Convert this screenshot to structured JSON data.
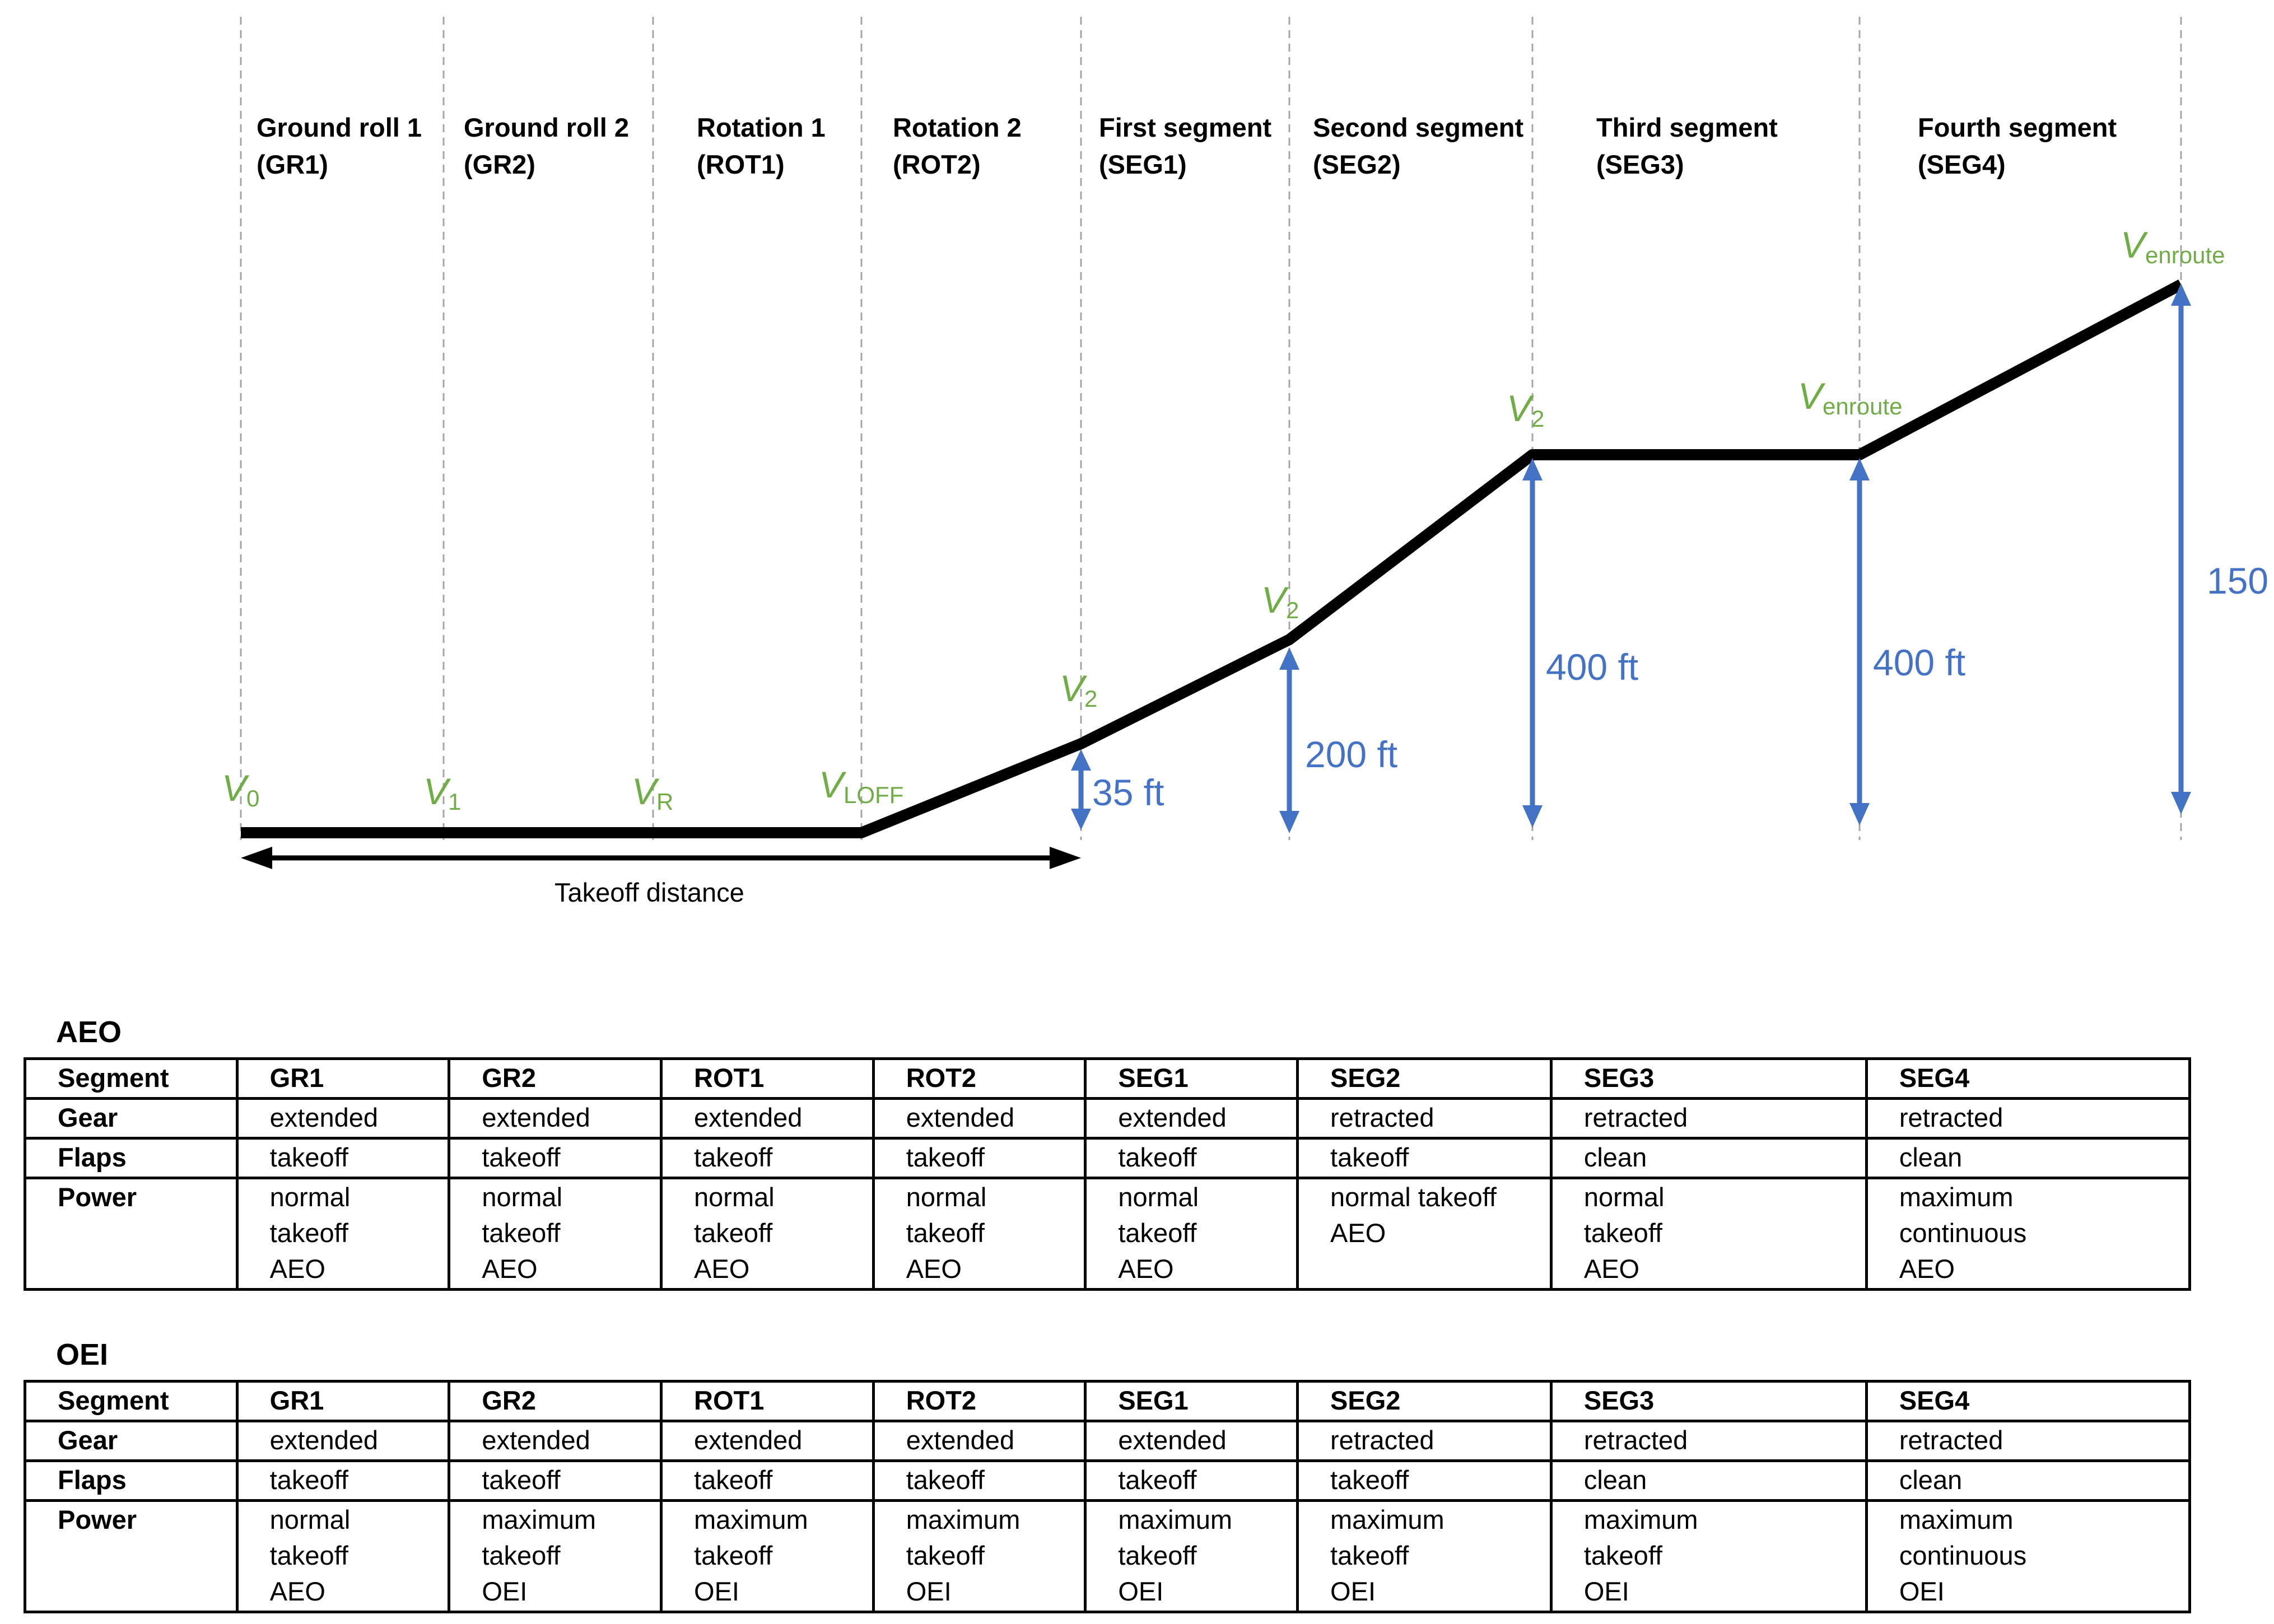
{
  "phases": [
    {
      "name": "Ground roll 1",
      "abbr": "(GR1)"
    },
    {
      "name": "Ground roll 2",
      "abbr": "(GR2)"
    },
    {
      "name": "Rotation 1",
      "abbr": "(ROT1)"
    },
    {
      "name": "Rotation 2",
      "abbr": "(ROT2)"
    },
    {
      "name": "First segment",
      "abbr": "(SEG1)"
    },
    {
      "name": "Second segment",
      "abbr": "(SEG2)"
    },
    {
      "name": "Third segment",
      "abbr": "(SEG3)"
    },
    {
      "name": "Fourth segment",
      "abbr": "(SEG4)"
    }
  ],
  "speeds": [
    {
      "main": "V",
      "sub": "0"
    },
    {
      "main": "V",
      "sub": "1"
    },
    {
      "main": "V",
      "sub": "R"
    },
    {
      "main": "V",
      "sub": "LOFF"
    },
    {
      "main": "V",
      "sub": "2"
    },
    {
      "main": "V",
      "sub": "2"
    },
    {
      "main": "V",
      "sub": "2"
    },
    {
      "main": "V",
      "sub": "enroute"
    },
    {
      "main": "V",
      "sub": "enroute"
    }
  ],
  "altitudes": [
    "35 ft",
    "200 ft",
    "400 ft",
    "400 ft",
    "150"
  ],
  "distance_label": "Takeoff distance",
  "colors": {
    "speed": "#70ad47",
    "altitude": "#4472c4",
    "path": "#000000",
    "gridline": "#a6a6a6"
  },
  "tables": [
    {
      "title": "AEO",
      "header": [
        "Segment",
        "GR1",
        "GR2",
        "ROT1",
        "ROT2",
        "SEG1",
        "SEG2",
        "SEG3",
        "SEG4"
      ],
      "rows": [
        [
          "Gear",
          "extended",
          "extended",
          "extended",
          "extended",
          "extended",
          "retracted",
          "retracted",
          "retracted"
        ],
        [
          "Flaps",
          "takeoff",
          "takeoff",
          "takeoff",
          "takeoff",
          "takeoff",
          "takeoff",
          "clean",
          "clean"
        ],
        [
          "Power",
          "normal\ntakeoff\nAEO",
          "normal\ntakeoff\nAEO",
          "normal\ntakeoff\nAEO",
          "normal\ntakeoff\nAEO",
          "normal\ntakeoff\nAEO",
          "normal takeoff\nAEO",
          "normal\ntakeoff\nAEO",
          "maximum\ncontinuous\nAEO"
        ]
      ]
    },
    {
      "title": "OEI",
      "header": [
        "Segment",
        "GR1",
        "GR2",
        "ROT1",
        "ROT2",
        "SEG1",
        "SEG2",
        "SEG3",
        "SEG4"
      ],
      "rows": [
        [
          "Gear",
          "extended",
          "extended",
          "extended",
          "extended",
          "extended",
          "retracted",
          "retracted",
          "retracted"
        ],
        [
          "Flaps",
          "takeoff",
          "takeoff",
          "takeoff",
          "takeoff",
          "takeoff",
          "takeoff",
          "clean",
          "clean"
        ],
        [
          "Power",
          "normal\ntakeoff\nAEO",
          "maximum\ntakeoff\nOEI",
          "maximum\ntakeoff\nOEI",
          "maximum\ntakeoff\nOEI",
          "maximum\ntakeoff\nOEI",
          "maximum\ntakeoff\nOEI",
          "maximum\ntakeoff\nOEI",
          "maximum\ncontinuous\nOEI"
        ]
      ]
    }
  ]
}
